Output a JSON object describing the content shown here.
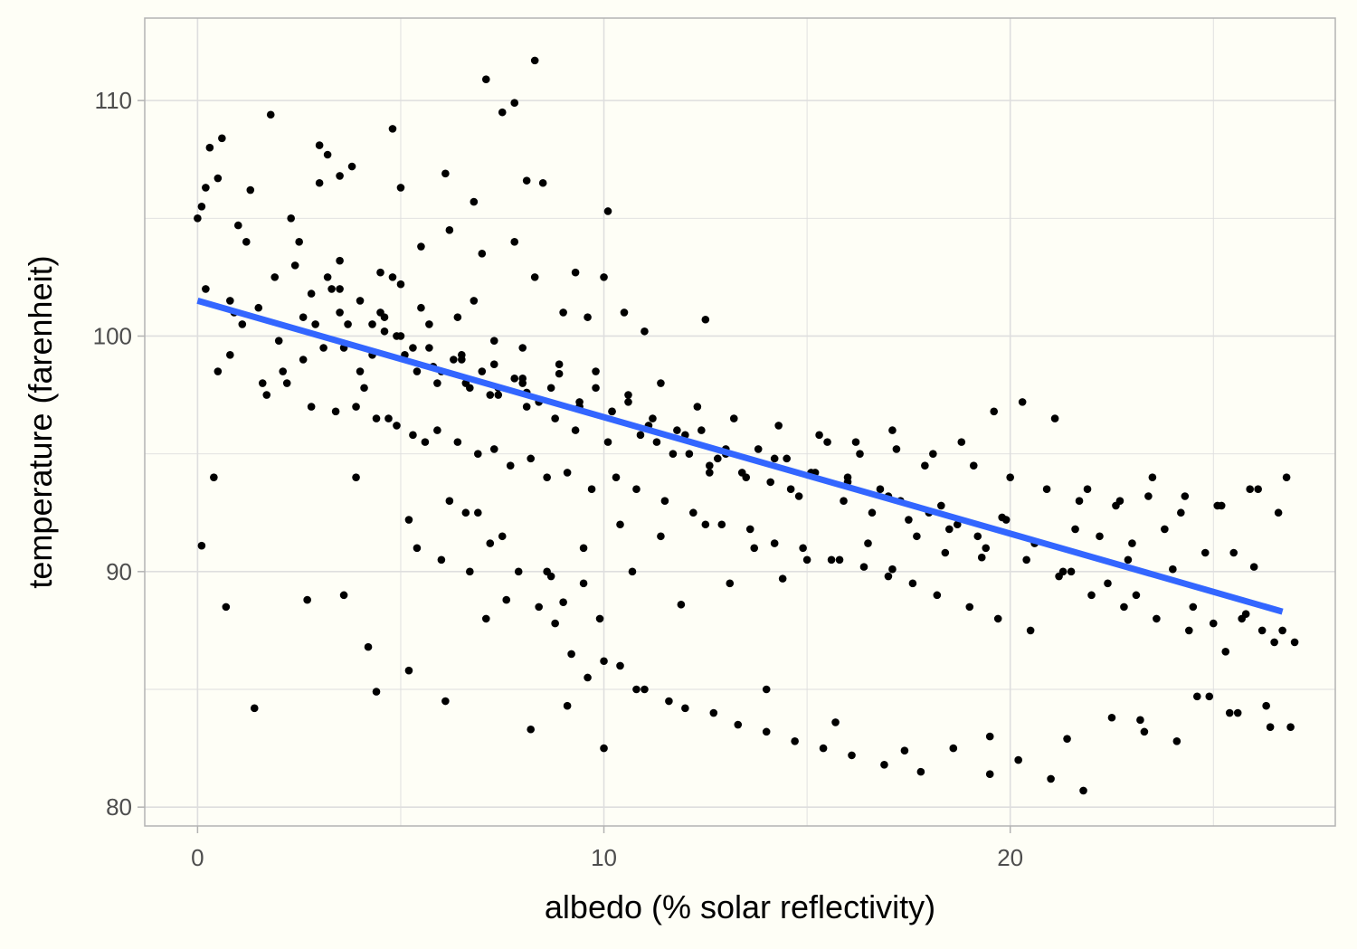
{
  "chart_data": {
    "type": "scatter",
    "xlabel": "albedo (% solar reflectivity)",
    "ylabel": "temperature (farenheit)",
    "xlim": [
      -1.3,
      28.0
    ],
    "ylim": [
      79.2,
      113.5
    ],
    "x_ticks": [
      0,
      10,
      20
    ],
    "x_tick_labels": [
      "0",
      "10",
      "20"
    ],
    "y_ticks": [
      80,
      90,
      100,
      110
    ],
    "y_tick_labels": [
      "80",
      "90",
      "100",
      "110"
    ],
    "x_minor_gridlines": [
      5,
      15,
      25
    ],
    "y_minor_gridlines": [
      85,
      95,
      105
    ],
    "grid": true,
    "legend": "none",
    "colors": {
      "points": "#000000",
      "trend_line": "#3366ff",
      "panel_border": "#b3b3b3",
      "gridline": "#dedede",
      "background": "#fefef6"
    },
    "trend_line": {
      "type": "linear",
      "x": [
        0.0,
        26.7
      ],
      "y": [
        101.5,
        88.3
      ]
    },
    "points_x": [
      0.0,
      0.1,
      0.2,
      0.3,
      0.5,
      0.6,
      0.8,
      1.3,
      1.8,
      2.3,
      3.0,
      3.0,
      3.2,
      3.5,
      3.8,
      4.5,
      4.8,
      5.0,
      5.5,
      6.1,
      6.8,
      7.1,
      7.5,
      7.8,
      8.1,
      8.3,
      8.5,
      9.3,
      10.1,
      1.0,
      2.5,
      3.5,
      4.5,
      5.0,
      5.7,
      6.2,
      6.8,
      7.0,
      7.8,
      8.3,
      9.0,
      9.6,
      10.0,
      10.5,
      11.0,
      12.5,
      3.5,
      4.9,
      5.9,
      6.5,
      7.2,
      8.0,
      0.8,
      1.1,
      1.5,
      2.0,
      2.6,
      3.1,
      3.7,
      4.0,
      4.3,
      4.6,
      5.1,
      5.4,
      5.8,
      6.3,
      6.6,
      7.0,
      7.4,
      7.8,
      8.1,
      8.4,
      8.9,
      9.4,
      9.8,
      10.2,
      10.6,
      11.2,
      11.8,
      12.4,
      13.0,
      13.8,
      14.5,
      15.2,
      16.0,
      16.8,
      17.3,
      18.0,
      18.7,
      19.2,
      0.2,
      0.5,
      1.7,
      2.2,
      2.8,
      3.4,
      3.9,
      4.4,
      4.9,
      5.3,
      5.9,
      6.4,
      6.9,
      7.3,
      7.7,
      8.2,
      8.6,
      9.1,
      9.7,
      10.3,
      10.8,
      11.5,
      12.2,
      12.9,
      13.6,
      14.2,
      14.9,
      15.6,
      16.4,
      17.0,
      17.6,
      18.2,
      19.0,
      19.7,
      20.5,
      21.2,
      22.0,
      22.8,
      23.6,
      24.4,
      25.0,
      25.8,
      26.5,
      4.2,
      5.2,
      6.0,
      6.7,
      7.6,
      8.4,
      8.8,
      9.2,
      9.6,
      10.0,
      10.4,
      11.0,
      11.6,
      12.0,
      12.7,
      13.3,
      14.0,
      14.7,
      15.4,
      16.1,
      16.9,
      17.8,
      18.6,
      19.5,
      20.2,
      21.0,
      21.8,
      22.5,
      23.3,
      24.1,
      24.9,
      25.6,
      26.3,
      26.9,
      1.4,
      2.1,
      2.9,
      3.6,
      4.1,
      4.7,
      5.6,
      6.2,
      6.9,
      7.2,
      7.9,
      8.7,
      9.0,
      9.5,
      9.9,
      10.7,
      11.3,
      12.1,
      12.8,
      13.4,
      14.1,
      14.8,
      15.5,
      16.3,
      17.1,
      17.9,
      18.8,
      19.6,
      20.3,
      21.1,
      21.9,
      22.7,
      23.5,
      24.3,
      25.1,
      25.9,
      26.6,
      0.4,
      1.2,
      2.4,
      3.3,
      4.8,
      5.5,
      6.4,
      7.3,
      8.0,
      8.9,
      9.8,
      10.6,
      11.4,
      12.3,
      13.2,
      14.3,
      15.3,
      16.2,
      17.2,
      18.1,
      19.1,
      20.0,
      20.9,
      21.7,
      22.6,
      23.4,
      24.2,
      25.2,
      26.1,
      26.8,
      12.6,
      14.0,
      15.7,
      17.4,
      19.5,
      21.4,
      23.2,
      24.6,
      25.4,
      26.4,
      3.6,
      4.4,
      5.2,
      6.1,
      7.1,
      8.2,
      9.1,
      10.0,
      10.8,
      11.9,
      13.1,
      14.4,
      15.8,
      17.1,
      18.4,
      19.8,
      21.3,
      22.9,
      24.0,
      25.3,
      26.2,
      2.7,
      3.9,
      5.4,
      6.6,
      7.5,
      8.6,
      9.5,
      10.4,
      11.4,
      12.5,
      13.7,
      15.0,
      16.5,
      17.7,
      19.3,
      20.6,
      22.2,
      23.8,
      25.5,
      0.7,
      1.6,
      2.6,
      3.2,
      4.0,
      4.6,
      5.3,
      6.0,
      6.7,
      7.4,
      8.1,
      8.8,
      9.3,
      10.1,
      10.9,
      11.7,
      12.6,
      13.5,
      14.6,
      15.9,
      16.6,
      17.5,
      18.5,
      19.4,
      20.4,
      21.5,
      22.4,
      23.1,
      24.5,
      25.7,
      26.7,
      27.0,
      0.1,
      0.9,
      1.9,
      2.8,
      3.5,
      4.3,
      5.0,
      5.7,
      6.5,
      7.3,
      8.0,
      8.7,
      9.4,
      10.2,
      11.1,
      12.0,
      13.0,
      14.2,
      15.1,
      16.0,
      17.0,
      18.3,
      19.9,
      21.6,
      23.0,
      24.8,
      26.0
    ],
    "points_y": [
      105.0,
      105.5,
      106.3,
      108.0,
      106.7,
      108.4,
      99.2,
      106.2,
      109.4,
      105.0,
      108.1,
      106.5,
      107.7,
      106.8,
      107.2,
      102.7,
      108.8,
      106.3,
      103.8,
      106.9,
      105.7,
      110.9,
      109.5,
      109.9,
      106.6,
      111.7,
      106.5,
      102.7,
      105.3,
      104.7,
      104.0,
      103.2,
      101.0,
      102.2,
      100.5,
      104.5,
      101.5,
      103.5,
      104.0,
      102.5,
      101.0,
      100.8,
      102.5,
      101.0,
      100.2,
      100.7,
      102.0,
      100.0,
      98.0,
      99.0,
      97.5,
      98.0,
      101.5,
      100.5,
      101.2,
      99.8,
      100.8,
      99.5,
      100.5,
      98.5,
      99.2,
      100.2,
      99.2,
      98.5,
      98.7,
      99.0,
      98.0,
      98.5,
      97.8,
      98.2,
      97.6,
      97.2,
      98.4,
      97.0,
      97.8,
      96.8,
      97.2,
      96.5,
      96.0,
      96.0,
      95.0,
      95.2,
      94.8,
      94.2,
      94.0,
      93.5,
      93.0,
      92.5,
      92.0,
      91.5,
      102.0,
      98.5,
      97.5,
      98.0,
      97.0,
      96.8,
      97.0,
      96.5,
      96.2,
      95.8,
      96.0,
      95.5,
      95.0,
      95.2,
      94.5,
      94.8,
      94.0,
      94.2,
      93.5,
      94.0,
      93.5,
      93.0,
      92.5,
      92.0,
      91.8,
      91.2,
      91.0,
      90.5,
      90.2,
      89.8,
      89.5,
      89.0,
      88.5,
      88.0,
      87.5,
      89.8,
      89.0,
      88.5,
      88.0,
      87.5,
      87.8,
      88.2,
      87.0,
      86.8,
      92.2,
      90.5,
      90.0,
      88.8,
      88.5,
      87.8,
      86.5,
      85.5,
      86.2,
      86.0,
      85.0,
      84.5,
      84.2,
      84.0,
      83.5,
      83.2,
      82.8,
      82.5,
      82.2,
      81.8,
      81.5,
      82.5,
      83.0,
      82.0,
      81.2,
      80.7,
      83.8,
      83.2,
      82.8,
      84.7,
      84.0,
      84.3,
      83.4,
      84.2,
      98.5,
      100.5,
      99.5,
      97.8,
      96.5,
      95.5,
      93.0,
      92.5,
      91.2,
      90.0,
      89.8,
      88.7,
      89.5,
      88.0,
      90.0,
      95.5,
      95.0,
      94.8,
      94.2,
      93.8,
      93.2,
      95.5,
      95.0,
      96.0,
      94.5,
      95.5,
      96.8,
      97.2,
      96.5,
      93.5,
      93.0,
      94.0,
      93.2,
      92.8,
      93.5,
      92.5,
      94.0,
      104.0,
      103.0,
      102.0,
      102.5,
      101.2,
      100.8,
      99.8,
      99.5,
      98.8,
      98.5,
      97.5,
      98.0,
      97.0,
      96.5,
      96.2,
      95.8,
      95.5,
      95.2,
      95.0,
      94.5,
      94.0,
      93.5,
      93.0,
      92.8,
      93.2,
      92.5,
      92.8,
      93.5,
      94.0,
      94.2,
      85.0,
      83.6,
      82.4,
      81.4,
      82.9,
      83.7,
      84.7,
      84.0,
      83.4,
      89.0,
      84.9,
      85.8,
      84.5,
      88.0,
      83.3,
      84.3,
      82.5,
      85.0,
      88.6,
      89.5,
      89.7,
      90.5,
      90.1,
      90.8,
      92.3,
      90.0,
      90.5,
      90.1,
      86.6,
      87.5,
      88.8,
      94.0,
      91.0,
      92.5,
      91.5,
      90.0,
      91.0,
      92.0,
      91.5,
      92.0,
      91.0,
      90.5,
      91.2,
      91.5,
      90.6,
      91.2,
      91.5,
      91.8,
      90.8,
      88.5,
      98.0,
      99.0,
      102.5,
      101.5,
      100.8,
      99.5,
      98.5,
      97.8,
      97.5,
      97.0,
      96.5,
      96.0,
      95.5,
      95.8,
      95.0,
      94.5,
      94.0,
      93.5,
      93.0,
      92.5,
      92.2,
      91.8,
      91.0,
      90.5,
      90.0,
      89.5,
      89.0,
      88.5,
      88.0,
      87.5,
      87.0,
      91.1,
      101.0,
      102.5,
      101.8,
      101.0,
      100.5,
      100.0,
      99.5,
      99.2,
      98.8,
      98.2,
      97.8,
      97.2,
      96.8,
      96.2,
      95.8,
      95.2,
      94.8,
      94.2,
      93.8,
      93.2,
      92.8,
      92.2,
      91.8,
      91.2,
      90.8,
      90.2,
      89.8
    ]
  }
}
